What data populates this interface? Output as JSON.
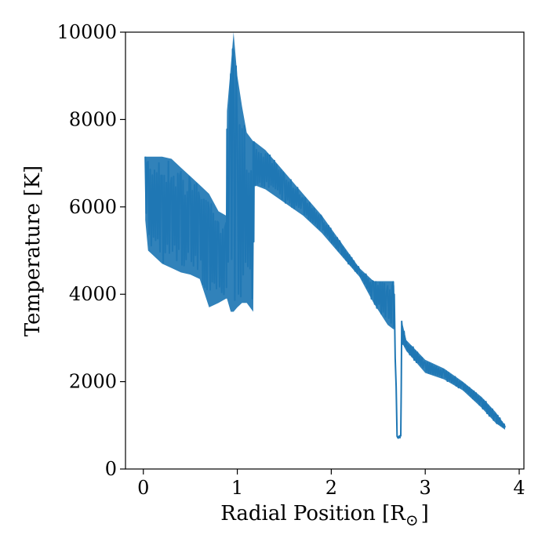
{
  "chart_data": {
    "type": "line",
    "title": "",
    "xlabel": "Radial Position [R",
    "xlabel_sub": "⊙",
    "xlabel_close": "]",
    "ylabel": "Temperature [K]",
    "xlim": [
      -0.19,
      4.05
    ],
    "ylim": [
      0,
      10000
    ],
    "xticks": [
      0,
      1,
      2,
      3,
      4
    ],
    "xtick_labels": [
      "0",
      "1",
      "2",
      "3",
      "4"
    ],
    "yticks": [
      0,
      2000,
      4000,
      6000,
      8000,
      10000
    ],
    "ytick_labels": [
      "0",
      "2000",
      "4000",
      "6000",
      "8000",
      "10000"
    ],
    "grid": false,
    "legend": "none",
    "line_color": "#1f77b4",
    "series": [
      {
        "band": [
          {
            "x": 0.02,
            "lo": 5700,
            "hi": 7150
          },
          {
            "x": 0.05,
            "lo": 5000,
            "hi": 7150
          },
          {
            "x": 0.2,
            "lo": 4700,
            "hi": 7150
          },
          {
            "x": 0.3,
            "lo": 4600,
            "hi": 7100
          },
          {
            "x": 0.4,
            "lo": 4500,
            "hi": 6900
          },
          {
            "x": 0.5,
            "lo": 4450,
            "hi": 6700
          },
          {
            "x": 0.6,
            "lo": 4350,
            "hi": 6500
          },
          {
            "x": 0.7,
            "lo": 3700,
            "hi": 6300
          },
          {
            "x": 0.8,
            "lo": 3800,
            "hi": 5900
          },
          {
            "x": 0.88,
            "lo": 3900,
            "hi": 5800
          },
          {
            "x": 0.89,
            "lo": 3900,
            "hi": 8200
          },
          {
            "x": 0.93,
            "lo": 3600,
            "hi": 9200
          },
          {
            "x": 0.96,
            "lo": 3600,
            "hi": 10000
          },
          {
            "x": 1.0,
            "lo": 3700,
            "hi": 9000
          },
          {
            "x": 1.05,
            "lo": 3800,
            "hi": 8300
          },
          {
            "x": 1.1,
            "lo": 3800,
            "hi": 7700
          },
          {
            "x": 1.17,
            "lo": 3600,
            "hi": 7500
          },
          {
            "x": 1.18,
            "lo": 6500,
            "hi": 7500
          },
          {
            "x": 1.3,
            "lo": 6400,
            "hi": 7300
          },
          {
            "x": 1.5,
            "lo": 6100,
            "hi": 6800
          },
          {
            "x": 1.7,
            "lo": 5800,
            "hi": 6300
          },
          {
            "x": 1.9,
            "lo": 5400,
            "hi": 5800
          },
          {
            "x": 2.1,
            "lo": 4900,
            "hi": 5200
          },
          {
            "x": 2.3,
            "lo": 4400,
            "hi": 4600
          },
          {
            "x": 2.45,
            "lo": 3800,
            "hi": 4300
          },
          {
            "x": 2.6,
            "lo": 3300,
            "hi": 4300
          },
          {
            "x": 2.66,
            "lo": 3200,
            "hi": 4300
          },
          {
            "x": 2.67,
            "lo": 3200,
            "hi": 4200
          },
          {
            "x": 2.7,
            "lo": 700,
            "hi": 760
          },
          {
            "x": 2.74,
            "lo": 700,
            "hi": 760
          },
          {
            "x": 2.75,
            "lo": 2900,
            "hi": 3400
          },
          {
            "x": 2.8,
            "lo": 2700,
            "hi": 2950
          },
          {
            "x": 3.0,
            "lo": 2200,
            "hi": 2500
          },
          {
            "x": 3.2,
            "lo": 2050,
            "hi": 2300
          },
          {
            "x": 3.4,
            "lo": 1800,
            "hi": 2000
          },
          {
            "x": 3.6,
            "lo": 1400,
            "hi": 1650
          },
          {
            "x": 3.75,
            "lo": 1050,
            "hi": 1300
          },
          {
            "x": 3.85,
            "lo": 900,
            "hi": 1000
          }
        ]
      }
    ]
  }
}
